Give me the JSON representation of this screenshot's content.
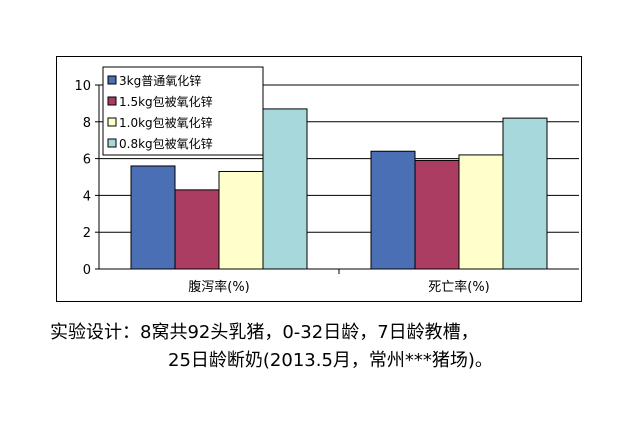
{
  "chart_data": {
    "type": "bar",
    "categories": [
      "腹泻率(%)",
      "死亡率(%)"
    ],
    "series": [
      {
        "name": "3kg普通氧化锌",
        "values": [
          5.6,
          6.4
        ],
        "color": "#4a6fb5"
      },
      {
        "name": "1.5kg包被氧化锌",
        "values": [
          4.3,
          5.9
        ],
        "color": "#aa3d61"
      },
      {
        "name": "1.0kg包被氧化锌",
        "values": [
          5.3,
          6.2
        ],
        "color": "#ffffcc"
      },
      {
        "name": "0.8kg包被氧化锌",
        "values": [
          8.7,
          8.2
        ],
        "color": "#a7d8dc"
      }
    ],
    "yticks": [
      "0",
      "2",
      "4",
      "6",
      "8",
      "10"
    ],
    "ylim": [
      0,
      10
    ],
    "grid": true,
    "legend": "top-left"
  },
  "caption": {
    "line1": "实验设计：8窝共92头乳猪，0-32日龄，7日龄教槽，",
    "line2": "25日龄断奶(2013.5月，常州***猪场)。"
  }
}
